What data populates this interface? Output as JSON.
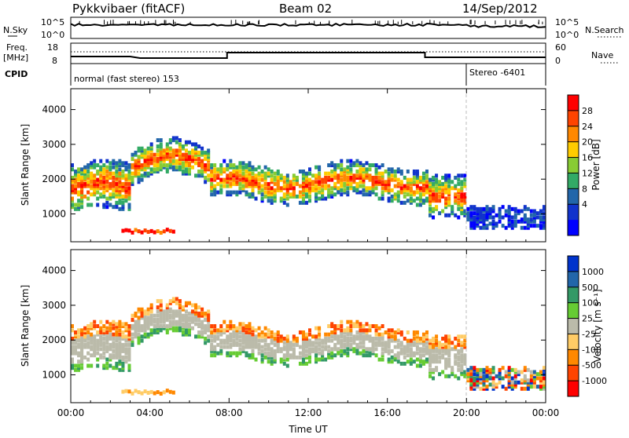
{
  "header": {
    "title": "Pykkvibaer (fitACF)",
    "beam": "Beam 02",
    "date": "14/Sep/2012"
  },
  "aux_panels": {
    "nsky_label": "N.Sky",
    "nsky_ticks": [
      "10^5",
      "10^0"
    ],
    "nsearch_label": "N.Search",
    "nsearch_ticks": [
      "10^5",
      "10^0"
    ],
    "freq_label_1": "Freq.",
    "freq_label_2": "[MHz]",
    "freq_ticks": [
      "18",
      "8"
    ],
    "nave_label": "Nave",
    "nave_ticks": [
      "60",
      "0"
    ],
    "cpid_label": "CPID",
    "cpid_mode_1": "normal (fast stereo) 153",
    "cpid_mode_2": "Stereo -6401"
  },
  "chart_data": [
    {
      "type": "heatmap",
      "name": "power-panel",
      "ylabel": "Slant Range [km]",
      "y_ticks": [
        "4000",
        "3000",
        "2000",
        "1000"
      ],
      "ylim": [
        200,
        4600
      ],
      "x_ticks": [
        "00:00",
        "04:00",
        "08:00",
        "12:00",
        "16:00",
        "20:00",
        "00:00"
      ],
      "colorbar": {
        "label": "Power [dB]",
        "ticks": [
          "28",
          "24",
          "20",
          "16",
          "12",
          "8",
          "4"
        ],
        "colors": [
          "#ff0000",
          "#ff4400",
          "#ff8800",
          "#ffcc00",
          "#88cc33",
          "#33aa66",
          "#2266aa",
          "#1133cc",
          "#0000ff"
        ]
      }
    },
    {
      "type": "heatmap",
      "name": "velocity-panel",
      "ylabel": "Slant Range [km]",
      "xlabel": "Time UT",
      "y_ticks": [
        "4000",
        "3000",
        "2000",
        "1000"
      ],
      "ylim": [
        200,
        4600
      ],
      "x_ticks": [
        "00:00",
        "04:00",
        "08:00",
        "12:00",
        "16:00",
        "20:00",
        "00:00"
      ],
      "colorbar": {
        "label": "Velocity [m s⁻¹]",
        "ticks": [
          "1000",
          "500",
          "100",
          "25",
          "-25",
          "-100",
          "-500",
          "-1000"
        ],
        "colors": [
          "#0033cc",
          "#2266aa",
          "#339966",
          "#66cc33",
          "#bbbbaa",
          "#ffcc66",
          "#ff8800",
          "#ff4400",
          "#ff0000"
        ]
      }
    }
  ]
}
